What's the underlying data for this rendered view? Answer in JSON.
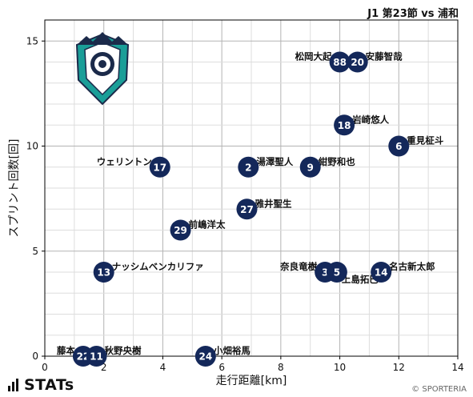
{
  "header": {
    "match": "J1 第23節 vs 浦和"
  },
  "footer": {
    "brand": "STATs",
    "credit": "© SPORTERIA"
  },
  "colors": {
    "marker": "#14285a",
    "marker_text": "#ffffff",
    "grid_major": "#b3b3b3",
    "grid_minor": "#dddddd",
    "axis": "#000000",
    "crest_teal": "#1a9e98",
    "crest_navy": "#1b2a4a"
  },
  "crest": {
    "icon": "team-crest-icon"
  },
  "chart_data": {
    "type": "scatter",
    "xlabel": "走行距離[km]",
    "ylabel": "スプリント回数[回]",
    "xlim": [
      0,
      14
    ],
    "ylim": [
      0,
      16
    ],
    "xticks": [
      0,
      2,
      4,
      6,
      8,
      10,
      12,
      14
    ],
    "yticks": [
      0,
      5,
      10,
      15
    ],
    "grid": true,
    "points": [
      {
        "number": "88",
        "name": "松岡大起",
        "x": 10.0,
        "y": 14,
        "label_side": "left"
      },
      {
        "number": "20",
        "name": "安藤智哉",
        "x": 10.6,
        "y": 14,
        "label_side": "right"
      },
      {
        "number": "18",
        "name": "岩崎悠人",
        "x": 10.15,
        "y": 11,
        "label_side": "right"
      },
      {
        "number": "6",
        "name": "重見柾斗",
        "x": 12.0,
        "y": 10,
        "label_side": "right"
      },
      {
        "number": "17",
        "name": "ウェリントン",
        "x": 3.9,
        "y": 9,
        "label_side": "left"
      },
      {
        "number": "2",
        "name": "湯澤聖人",
        "x": 6.9,
        "y": 9,
        "label_side": "right"
      },
      {
        "number": "9",
        "name": "紺野和也",
        "x": 9.0,
        "y": 9,
        "label_side": "right"
      },
      {
        "number": "27",
        "name": "雅井聖生",
        "x": 6.85,
        "y": 7,
        "label_side": "right"
      },
      {
        "number": "29",
        "name": "前嶋洋太",
        "x": 4.6,
        "y": 6,
        "label_side": "right"
      },
      {
        "number": "13",
        "name": "ナッシムベンカリファ",
        "x": 2.0,
        "y": 4,
        "label_side": "right"
      },
      {
        "number": "3",
        "name": "奈良竜樹",
        "x": 9.5,
        "y": 4,
        "label_side": "left"
      },
      {
        "number": "5",
        "name": "上島拓巳",
        "x": 9.9,
        "y": 4,
        "label_side": "below-right"
      },
      {
        "number": "14",
        "name": "名古新太郎",
        "x": 11.4,
        "y": 4,
        "label_side": "right"
      },
      {
        "number": "22",
        "name": "藤本",
        "x": 1.3,
        "y": 0,
        "label_side": "left"
      },
      {
        "number": "11",
        "name": "秋野央樹",
        "x": 1.75,
        "y": 0,
        "label_side": "right"
      },
      {
        "number": "24",
        "name": "小畑裕馬",
        "x": 5.45,
        "y": 0,
        "label_side": "right"
      }
    ]
  }
}
